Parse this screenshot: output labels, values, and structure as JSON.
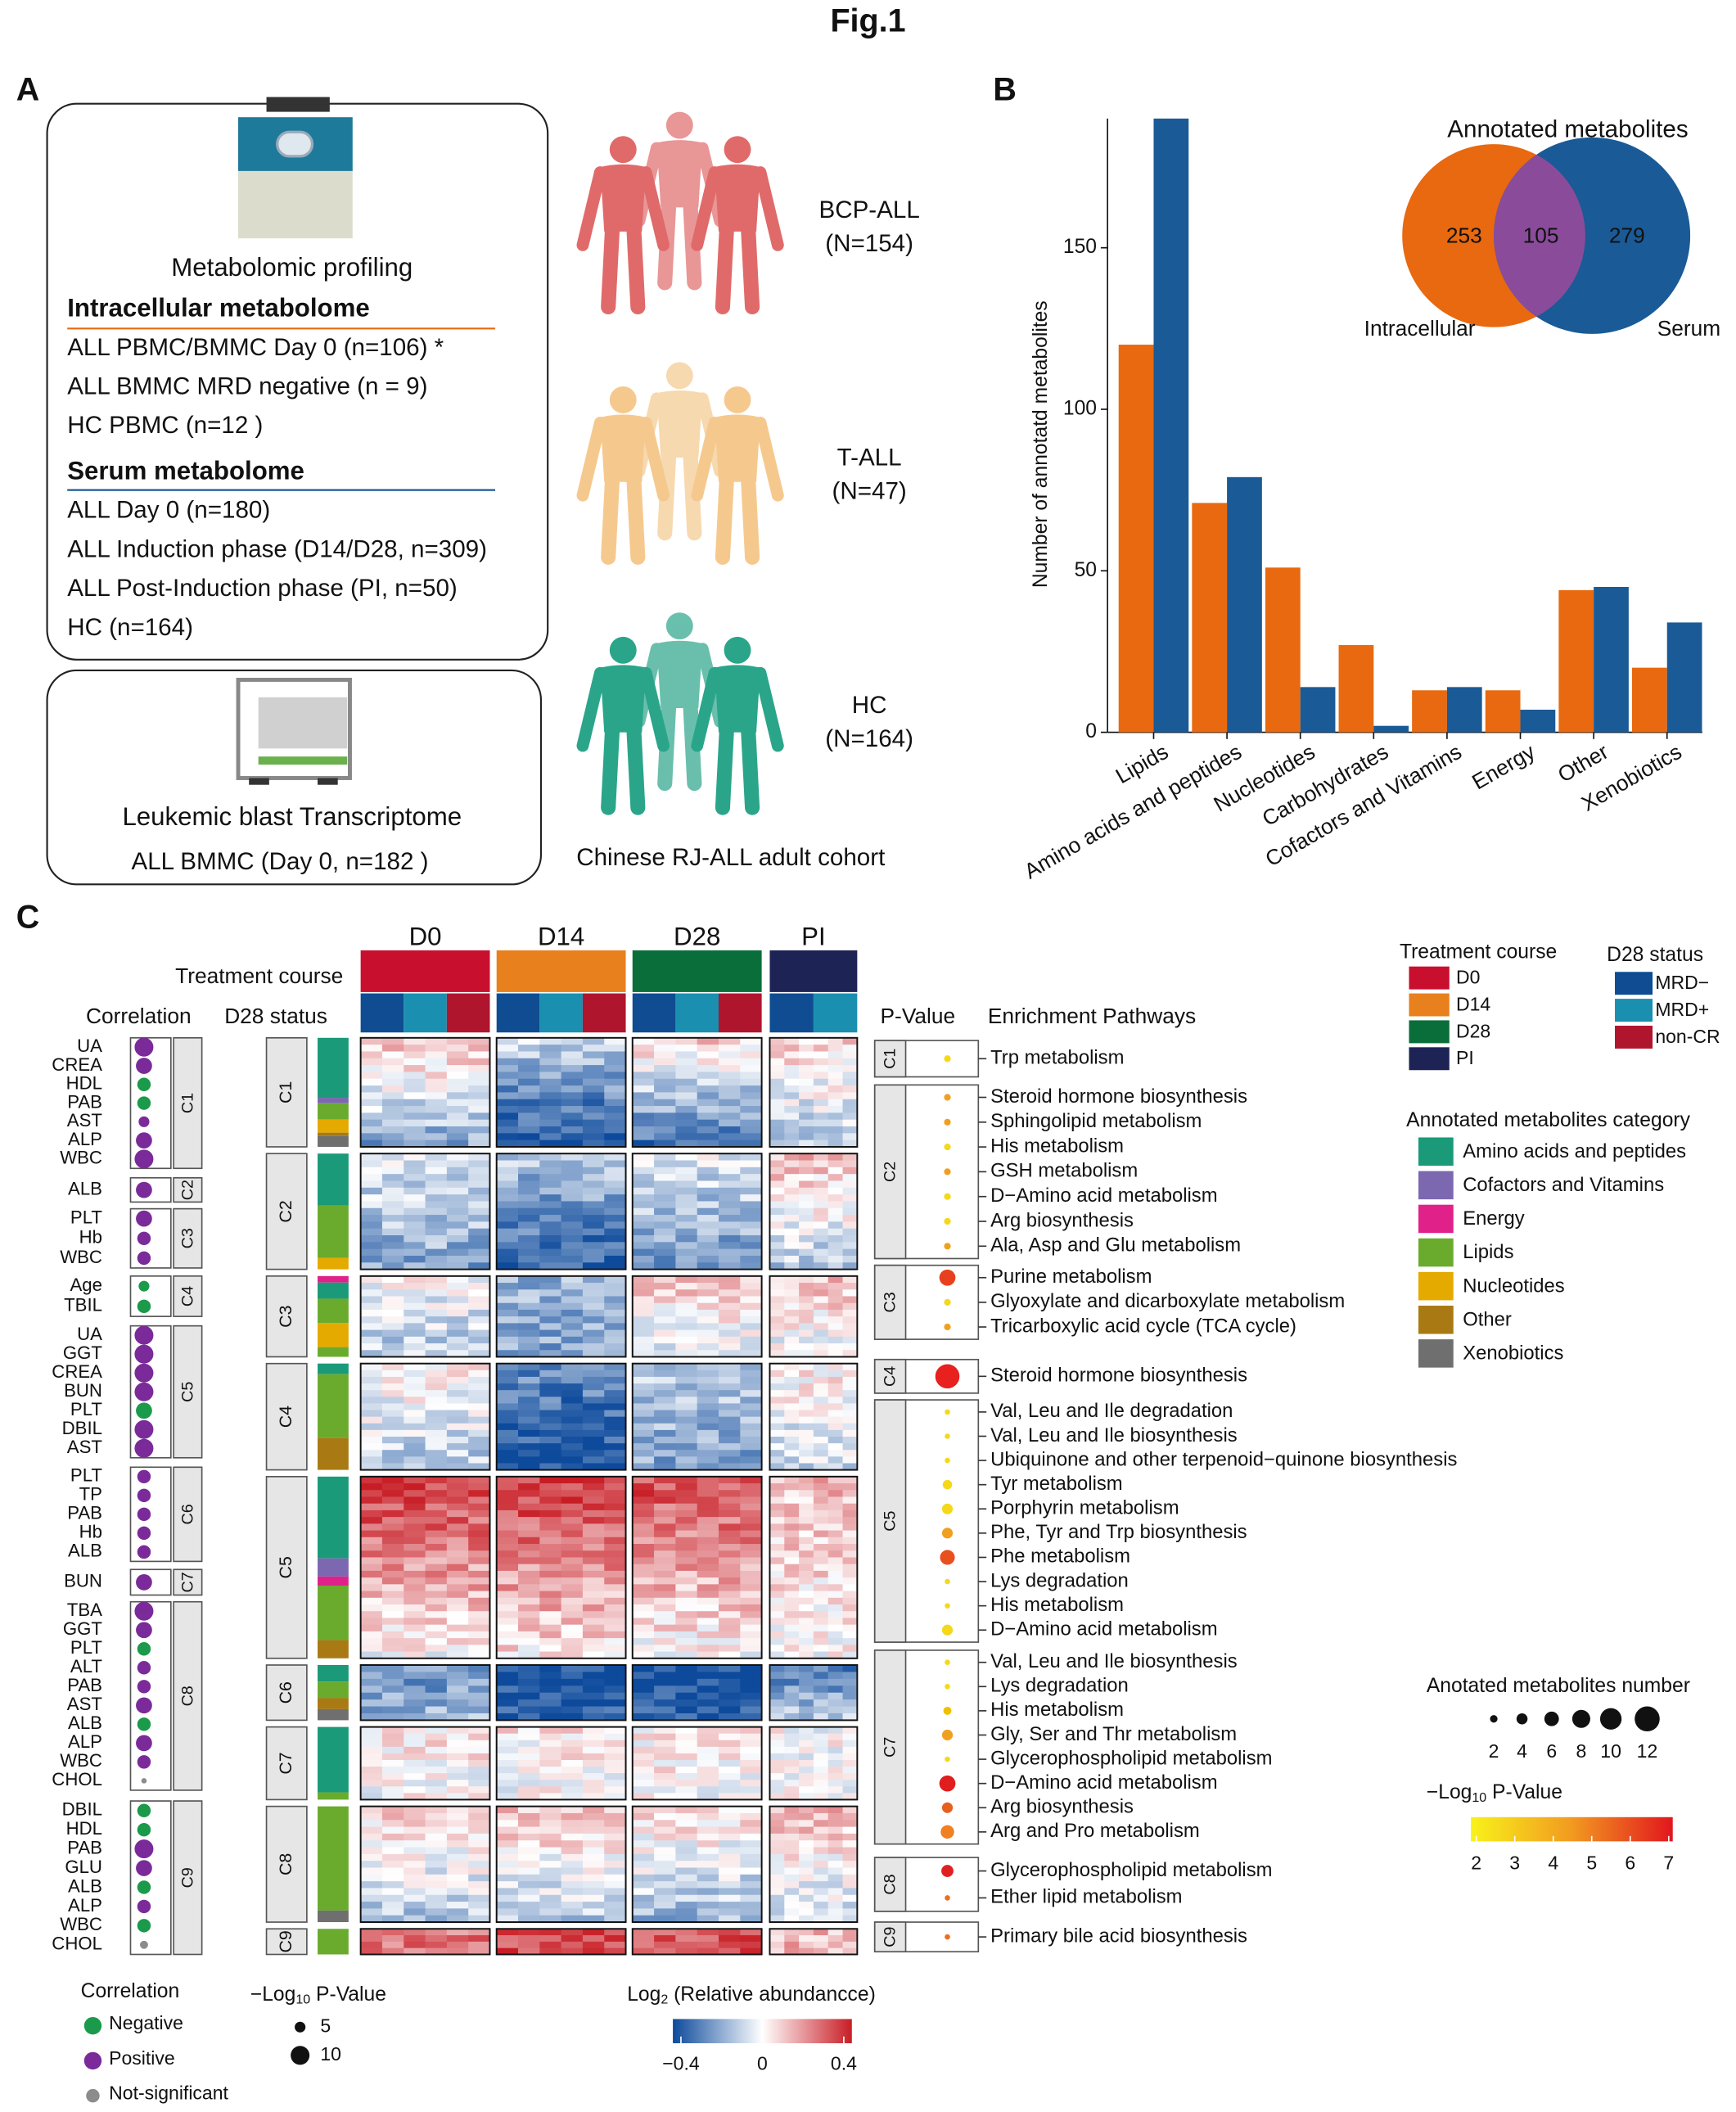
{
  "figure_title": "Fig.1",
  "panel_a": {
    "label": "A",
    "profiling": "Metabolomic profiling",
    "intracellular": {
      "title": "Intracellular metabolome",
      "items": [
        "ALL PBMC/BMMC Day 0 (n=106) *",
        "ALL BMMC MRD negative (n = 9)",
        "HC  PBMC (n=12 )"
      ]
    },
    "serum": {
      "title": "Serum metabolome",
      "items": [
        "ALL Day 0 (n=180)",
        "ALL Induction phase (D14/D28, n=309)",
        "ALL Post-Induction phase (PI, n=50)",
        "HC (n=164)"
      ]
    },
    "transcriptome": "Leukemic blast Transcriptome",
    "transcriptome_item": "ALL BMMC (Day 0, n=182 )",
    "cohorts": [
      {
        "name": "BCP-ALL",
        "n": "(N=154)",
        "color": "#e06a6a"
      },
      {
        "name": "T-ALL",
        "n": "(N=47)",
        "color": "#f5c98e"
      },
      {
        "name": "HC",
        "n": "(N=164)",
        "color": "#2aa58a"
      }
    ],
    "cohort_caption": "Chinese RJ-ALL adult cohort"
  },
  "panel_b": {
    "label": "B"
  },
  "chart_data": {
    "type": "bar",
    "y_label": "Number of annotatd metabolites",
    "categories": [
      "Lipids",
      "Amino acids and peptides",
      "Nucleotides",
      "Carbohydrates",
      "Cofactors and Vitamins",
      "Energy",
      "Other",
      "Xenobiotics"
    ],
    "series": [
      {
        "name": "Intracellular",
        "color": "#e8690f",
        "values": [
          120,
          71,
          51,
          27,
          13,
          13,
          44,
          20
        ]
      },
      {
        "name": "Serum",
        "color": "#1a5a96",
        "values": [
          190,
          79,
          14,
          2,
          14,
          7,
          45,
          34
        ]
      }
    ],
    "ylim": [
      0,
      190
    ],
    "yticks": [
      0,
      50,
      100,
      150
    ]
  },
  "venn": {
    "title": "Annotated metabolites",
    "values": [
      253,
      105,
      279
    ],
    "overlap_color": "#8a4c9a"
  },
  "panel_c": {
    "label": "C",
    "timepoints": [
      "D0",
      "D14",
      "D28",
      "PI"
    ],
    "treatment_course_label": "Treatment course",
    "d28_status_label": "D28 status",
    "correlation_label": "Correlation",
    "clusters": [
      "C1",
      "C2",
      "C3",
      "C4",
      "C5",
      "C6",
      "C7",
      "C8",
      "C9"
    ],
    "correlation_vars": [
      [
        "UA",
        "CREA",
        "HDL",
        "PAB",
        "AST",
        "ALP",
        "WBC"
      ],
      [
        "ALB"
      ],
      [
        "PLT",
        "Hb",
        "WBC"
      ],
      [
        "Age",
        "TBIL"
      ],
      [
        "UA",
        "GGT",
        "CREA",
        "BUN",
        "PLT",
        "DBIL",
        "AST"
      ],
      [
        "PLT",
        "TP",
        "PAB",
        "Hb",
        "ALB"
      ],
      [
        "BUN"
      ],
      [
        "TBA",
        "GGT",
        "PLT",
        "ALT",
        "PAB",
        "AST",
        "ALB",
        "ALP",
        "WBC",
        "CHOL"
      ],
      [
        "DBIL",
        "HDL",
        "PAB",
        "GLU",
        "ALB",
        "ALP",
        "WBC",
        "CHOL"
      ]
    ],
    "pvalue_label": "P-Value",
    "enrichment_label": "Enrichment Pathways",
    "pathway_clusters": [
      "C1",
      "C2",
      "C3",
      "C4",
      "C5",
      "C7",
      "C8",
      "C9"
    ],
    "pathways": [
      [
        "Trp metabolism"
      ],
      [
        "Steroid hormone biosynthesis",
        "Sphingolipid metabolism",
        "His metabolism",
        "GSH metabolism",
        "D−Amino acid metabolism",
        "Arg biosynthesis",
        "Ala, Asp and Glu metabolism"
      ],
      [
        "Purine metabolism",
        "Glyoxylate and dicarboxylate metabolism",
        "Tricarboxylic acid cycle (TCA cycle)"
      ],
      [
        "Steroid hormone biosynthesis"
      ],
      [
        "Val, Leu and Ile degradation",
        "Val, Leu and Ile biosynthesis",
        "Ubiquinone and other terpenoid−quinone biosynthesis",
        "Tyr metabolism",
        "Porphyrin metabolism",
        "Phe, Tyr and Trp biosynthesis",
        "Phe metabolism",
        "Lys degradation",
        "His metabolism",
        "D−Amino acid metabolism"
      ],
      [
        "Val, Leu and Ile biosynthesis",
        "Lys degradation",
        "His metabolism",
        "Gly, Ser and Thr metabolism",
        "Glycerophospholipid metabolism",
        "D−Amino acid metabolism",
        "Arg biosynthesis",
        "Arg and Pro metabolism"
      ],
      [
        "Glycerophospholipid metabolism",
        "Ether lipid metabolism"
      ],
      [
        "Primary bile acid biosynthesis"
      ]
    ],
    "legend_treatment": {
      "title": "Treatment course",
      "entries": [
        {
          "name": "D0",
          "color": "#c8102e"
        },
        {
          "name": "D14",
          "color": "#e8801e"
        },
        {
          "name": "D28",
          "color": "#0a6e3a"
        },
        {
          "name": "PI",
          "color": "#1e2356"
        }
      ]
    },
    "legend_d28": {
      "title": "D28 status",
      "entries": [
        {
          "name": "MRD−",
          "color": "#0f4c91"
        },
        {
          "name": "MRD+",
          "color": "#1a8fb0"
        },
        {
          "name": "non-CR",
          "color": "#b0152e"
        }
      ]
    },
    "legend_category": {
      "title": "Annotated metabolites category",
      "entries": [
        {
          "name": "Amino acids and peptides",
          "color": "#1a9a78"
        },
        {
          "name": "Cofactors and Vitamins",
          "color": "#7b68b0"
        },
        {
          "name": "Energy",
          "color": "#e0218a"
        },
        {
          "name": "Lipids",
          "color": "#6aab2e"
        },
        {
          "name": "Nucleotides",
          "color": "#e5aa00"
        },
        {
          "name": "Other",
          "color": "#a97a14"
        },
        {
          "name": "Xenobiotics",
          "color": "#6f6f6f"
        }
      ]
    },
    "legend_size": {
      "title": "Anotated metabolites number",
      "values": [
        2,
        4,
        6,
        8,
        10,
        12
      ]
    },
    "legend_pcolor": {
      "title": {
        "prefix": "−Log",
        "sub": "10",
        "suffix": " P-Value"
      },
      "ticks": [
        2,
        3,
        4,
        5,
        6,
        7
      ]
    },
    "legend_correlation": {
      "title": "Correlation",
      "entries": [
        {
          "name": "Negative",
          "color": "#1a9a4a"
        },
        {
          "name": "Positive",
          "color": "#7b2a9a"
        },
        {
          "name": "Not-significant",
          "color": "#8c8c8c"
        }
      ]
    },
    "legend_pvalue": {
      "title": {
        "prefix": "−Log",
        "sub": "10",
        "suffix": " P-Value"
      },
      "values": [
        5,
        10
      ]
    },
    "legend_abundance": {
      "title": {
        "prefix": "Log",
        "sub": "2",
        "suffix": " (Relative abundancce)"
      },
      "ticks": [
        {
          "value": -0.4,
          "label": "−0.4"
        },
        0,
        0.4
      ]
    }
  }
}
